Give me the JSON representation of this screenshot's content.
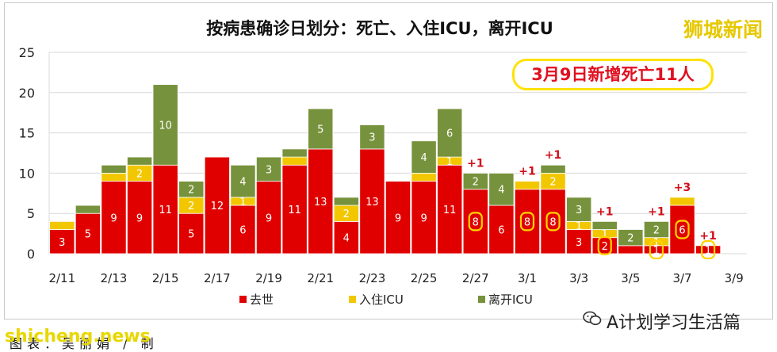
{
  "header": {
    "title": "按病患确诊日划分：死亡、入住ICU，离开ICU",
    "brand": "狮城新闻",
    "callout": "3月9日新增死亡11人"
  },
  "footer": {
    "watermark_left": "shicheng.news",
    "caption": "图表：吴丽娟 / 制",
    "watermark_right": "A计划学习生活篇"
  },
  "colors": {
    "death": "#e00000",
    "icu": "#f2c700",
    "left_icu": "#77923c"
  },
  "icons": {
    "wechat": "wechat-icon"
  },
  "chart_data": {
    "type": "bar",
    "stacked": true,
    "ylim": [
      0,
      25
    ],
    "yticks": [
      "0",
      "5",
      "10",
      "15",
      "20",
      "25"
    ],
    "x": [
      "2/11",
      "2/12",
      "2/13",
      "2/14",
      "2/15",
      "2/16",
      "2/17",
      "2/18",
      "2/19",
      "2/20",
      "2/21",
      "2/22",
      "2/23",
      "2/24",
      "2/25",
      "2/26",
      "2/27",
      "2/28",
      "3/1",
      "3/2",
      "3/3",
      "3/4",
      "3/5",
      "3/6",
      "3/7",
      "3/8",
      "3/9"
    ],
    "xtick_labels": [
      "2/11",
      "",
      "2/13",
      "",
      "2/15",
      "",
      "2/17",
      "",
      "2/19",
      "",
      "2/21",
      "",
      "2/23",
      "",
      "2/25",
      "",
      "2/27",
      "",
      "3/1",
      "",
      "3/3",
      "",
      "3/5",
      "",
      "3/7",
      "",
      "3/9"
    ],
    "series": [
      {
        "name": "去世",
        "values": [
          3,
          5,
          9,
          9,
          11,
          5,
          12,
          6,
          9,
          11,
          13,
          4,
          13,
          9,
          9,
          11,
          8,
          6,
          8,
          8,
          3,
          2,
          1,
          1,
          6,
          1,
          0
        ],
        "labels": [
          "3",
          "5",
          "9",
          "9",
          "11",
          "5",
          "12",
          "6",
          "9",
          "11",
          "13",
          "4",
          "13",
          "9",
          "9",
          "11",
          "8",
          "6",
          "8",
          "8",
          "3",
          "2",
          "",
          "",
          "6",
          "1",
          ""
        ]
      },
      {
        "name": "入住ICU",
        "values": [
          1,
          0,
          1,
          2,
          0,
          2,
          0,
          1,
          0,
          1,
          0,
          2,
          0,
          0,
          1,
          1,
          0,
          0,
          1,
          2,
          1,
          1,
          0,
          1,
          1,
          0,
          0
        ],
        "labels": [
          "",
          "",
          "",
          "2",
          "",
          "2",
          "",
          "1",
          "",
          "",
          "",
          "2",
          "",
          "",
          "",
          "1",
          "",
          "",
          "",
          "2",
          "1",
          "1",
          "",
          "1",
          "",
          "",
          ""
        ]
      },
      {
        "name": "离开ICU",
        "values": [
          0,
          1,
          1,
          1,
          10,
          2,
          0,
          4,
          3,
          1,
          5,
          1,
          3,
          0,
          4,
          6,
          2,
          4,
          0,
          1,
          3,
          1,
          2,
          2,
          0,
          0,
          0
        ],
        "labels": [
          "",
          "",
          "",
          "",
          "10",
          "2",
          "",
          "4",
          "3",
          "",
          "5",
          "",
          "3",
          "",
          "4",
          "6",
          "2",
          "4",
          "",
          "",
          "3",
          "",
          "2",
          "2",
          "",
          "",
          ""
        ]
      }
    ],
    "annotations": [
      {
        "x": "2/27",
        "text": "+1"
      },
      {
        "x": "3/1",
        "text": "+1"
      },
      {
        "x": "3/2",
        "text": "+1"
      },
      {
        "x": "3/4",
        "text": "+1"
      },
      {
        "x": "3/6",
        "text": "+1"
      },
      {
        "x": "3/7",
        "text": "+3"
      },
      {
        "x": "3/8",
        "text": "+1"
      }
    ],
    "highlighted": [
      "2/27",
      "3/1",
      "3/2",
      "3/4",
      "3/6",
      "3/7",
      "3/8"
    ],
    "legend": [
      "去世",
      "入住ICU",
      "离开ICU"
    ],
    "legend_position": "bottom"
  }
}
